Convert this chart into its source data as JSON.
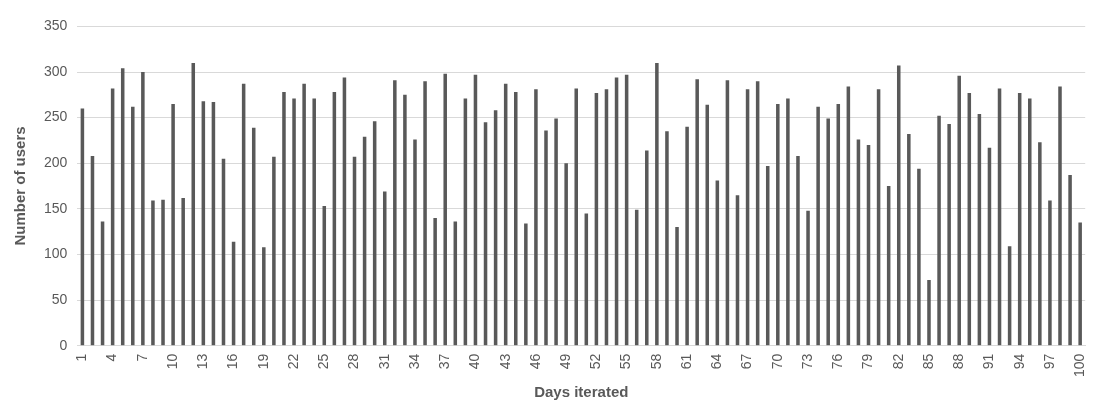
{
  "chart_data": {
    "type": "bar",
    "xlabel": "Days iterated",
    "ylabel": "Number of users",
    "categories": [
      "1",
      null,
      null,
      "4",
      null,
      null,
      "7",
      null,
      null,
      "10",
      null,
      null,
      "13",
      null,
      null,
      "16",
      null,
      null,
      "19",
      null,
      null,
      "22",
      null,
      null,
      "25",
      null,
      null,
      "28",
      null,
      null,
      "31",
      null,
      null,
      "34",
      null,
      null,
      "37",
      null,
      null,
      "40",
      null,
      null,
      "43",
      null,
      null,
      "46",
      null,
      null,
      "49",
      null,
      null,
      "52",
      null,
      null,
      "55",
      null,
      null,
      "58",
      null,
      null,
      "61",
      null,
      null,
      "64",
      null,
      null,
      "67",
      null,
      null,
      "70",
      null,
      null,
      "73",
      null,
      null,
      "76",
      null,
      null,
      "79",
      null,
      null,
      "82",
      null,
      null,
      "85",
      null,
      null,
      "88",
      null,
      null,
      "91",
      null,
      null,
      "94",
      null,
      null,
      "97",
      null,
      null,
      "100"
    ],
    "values": [
      260,
      208,
      136,
      282,
      304,
      262,
      300,
      159,
      160,
      265,
      162,
      310,
      268,
      267,
      205,
      114,
      287,
      239,
      108,
      207,
      278,
      271,
      287,
      271,
      153,
      278,
      294,
      207,
      229,
      246,
      169,
      291,
      275,
      226,
      290,
      140,
      298,
      136,
      271,
      297,
      245,
      258,
      287,
      278,
      134,
      281,
      236,
      249,
      200,
      282,
      145,
      277,
      281,
      294,
      297,
      149,
      214,
      310,
      235,
      130,
      240,
      292,
      264,
      181,
      291,
      165,
      281,
      290,
      197,
      265,
      271,
      208,
      148,
      262,
      249,
      265,
      284,
      226,
      220,
      281,
      175,
      307,
      232,
      194,
      72,
      252,
      243,
      296,
      277,
      254,
      217,
      282,
      109,
      277,
      271,
      223,
      159,
      284,
      187,
      135
    ],
    "color": "#595959",
    "ylim": [
      0,
      350
    ],
    "yticks": [
      0,
      50,
      100,
      150,
      200,
      250,
      300,
      350
    ],
    "grid": "y"
  }
}
